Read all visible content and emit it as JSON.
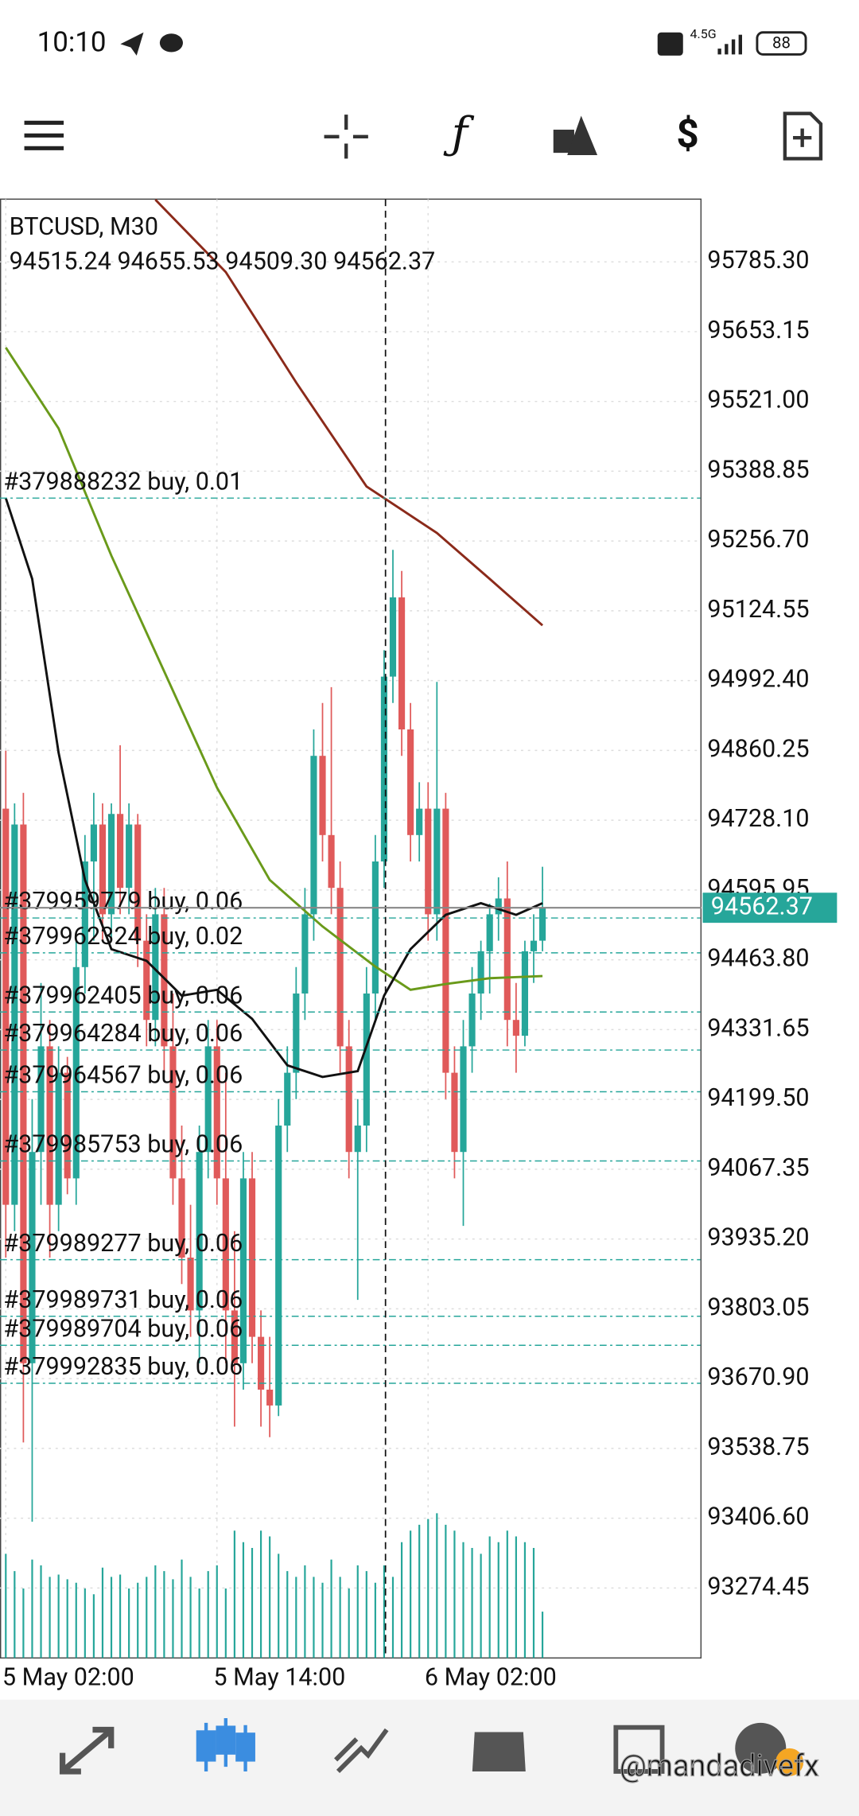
{
  "status_bar": {
    "time": "10:10",
    "network": "4.5G",
    "battery": "88"
  },
  "chart_data": {
    "type": "candlestick",
    "title": "BTCUSD, M30",
    "ohlc_labels": [
      "94515.24",
      "94655.53",
      "94509.30",
      "94562.37"
    ],
    "categories": [
      "5 May 02:00",
      null,
      null,
      null,
      null,
      null,
      null,
      null,
      null,
      null,
      null,
      null,
      null,
      null,
      null,
      null,
      null,
      null,
      null,
      null,
      null,
      null,
      null,
      null,
      "5 May 14:00",
      null,
      null,
      null,
      null,
      null,
      null,
      null,
      null,
      null,
      null,
      null,
      null,
      null,
      null,
      null,
      null,
      null,
      null,
      null,
      null,
      null,
      null,
      null,
      "6 May 02:00",
      null,
      null,
      null,
      null,
      null,
      null,
      null,
      null,
      null,
      null,
      null,
      null,
      null
    ],
    "open": [
      94750,
      94000,
      94720,
      93700,
      94100,
      94300,
      94000,
      94250,
      94050,
      94450,
      94650,
      94720,
      94550,
      94740,
      94600,
      94720,
      94500,
      94350,
      94550,
      94300,
      94050,
      93900,
      93800,
      94100,
      94300,
      94050,
      93800,
      93700,
      94050,
      93750,
      93650,
      93620,
      94150,
      94250,
      94400,
      94550,
      94850,
      94700,
      94600,
      94300,
      94100,
      94150,
      94400,
      94650,
      95000,
      95150,
      94900,
      94700,
      94750,
      94550,
      94750,
      94250,
      94100,
      94300,
      94400,
      94480,
      94550,
      94580,
      94350,
      94320,
      94480,
      94500
    ],
    "high": [
      94860,
      94760,
      94780,
      94200,
      94420,
      94350,
      94300,
      94280,
      94500,
      94700,
      94780,
      94760,
      94760,
      94870,
      94760,
      94740,
      94550,
      94600,
      94600,
      94400,
      94150,
      94000,
      94150,
      94350,
      94350,
      94250,
      93950,
      94100,
      94100,
      93800,
      93750,
      94200,
      94300,
      94450,
      94600,
      94900,
      94950,
      94980,
      94650,
      94350,
      94200,
      94450,
      94700,
      95050,
      95240,
      95200,
      94950,
      94800,
      94800,
      94990,
      94780,
      94300,
      94350,
      94450,
      94500,
      94570,
      94620,
      94650,
      94420,
      94500,
      94550,
      94640
    ],
    "low": [
      93900,
      93950,
      93550,
      93400,
      94000,
      93900,
      93950,
      94020,
      94000,
      94400,
      94500,
      94500,
      94500,
      94550,
      94550,
      94450,
      94300,
      94300,
      94250,
      94000,
      93850,
      93750,
      93700,
      94050,
      94000,
      93700,
      93580,
      93650,
      93700,
      93580,
      93560,
      93600,
      94100,
      94200,
      94350,
      94500,
      94650,
      94550,
      94250,
      94050,
      93820,
      94100,
      94350,
      94600,
      94950,
      94850,
      94650,
      94650,
      94500,
      94500,
      94200,
      94050,
      93960,
      94250,
      94350,
      94400,
      94500,
      94300,
      94250,
      94300,
      94420,
      94480
    ],
    "close": [
      94000,
      94720,
      93700,
      94100,
      94300,
      94000,
      94250,
      94050,
      94450,
      94650,
      94720,
      94550,
      94740,
      94600,
      94720,
      94500,
      94350,
      94550,
      94300,
      94050,
      93900,
      93800,
      94100,
      94300,
      94050,
      93800,
      93700,
      94050,
      93750,
      93650,
      93620,
      94150,
      94250,
      94400,
      94550,
      94850,
      94700,
      94600,
      94300,
      94100,
      94150,
      94400,
      94650,
      95000,
      95150,
      94900,
      94700,
      94750,
      94550,
      94750,
      94250,
      94100,
      94300,
      94400,
      94480,
      94550,
      94580,
      94350,
      94320,
      94480,
      94500,
      94562.37
    ],
    "volume": [
      90,
      75,
      60,
      85,
      80,
      70,
      72,
      68,
      65,
      60,
      55,
      78,
      70,
      72,
      60,
      65,
      70,
      80,
      75,
      68,
      85,
      70,
      60,
      75,
      80,
      60,
      110,
      100,
      95,
      110,
      105,
      90,
      75,
      70,
      80,
      70,
      65,
      85,
      70,
      60,
      80,
      75,
      65,
      80,
      70,
      100,
      110,
      115,
      120,
      125,
      115,
      110,
      100,
      95,
      90,
      105,
      100,
      110,
      105,
      100,
      95,
      40
    ],
    "up_color": "#26a69a",
    "down_color": "#e05a5a",
    "moving_averages": [
      {
        "color": "#8b2a1a",
        "x": [
          17,
          25,
          33,
          41,
          49,
          55,
          61
        ],
        "values": [
          95903,
          95766,
          95557,
          95360,
          95272,
          95185,
          95097
        ]
      },
      {
        "color": "#6a9a1a",
        "x": [
          0,
          6,
          12,
          18,
          24,
          30,
          36,
          42,
          46,
          50,
          55,
          61
        ],
        "values": [
          95623,
          95470,
          95229,
          95010,
          94790,
          94615,
          94527,
          94451,
          94407,
          94418,
          94429,
          94433
        ]
      },
      {
        "color": "#111111",
        "x": [
          0,
          3,
          6,
          9,
          12,
          16,
          20,
          24,
          28,
          32,
          36,
          40,
          43,
          46,
          50,
          54,
          58,
          61
        ],
        "values": [
          95338,
          95185,
          94856,
          94615,
          94484,
          94462,
          94396,
          94407,
          94352,
          94264,
          94242,
          94253,
          94396,
          94484,
          94549,
          94571,
          94549,
          94571
        ]
      }
    ],
    "orders": [
      {
        "label": "#379888232 buy, 0.01",
        "price": 95338
      },
      {
        "label": "#379959779 buy, 0.06",
        "price": 94543
      },
      {
        "label": "#379962324 buy, 0.02",
        "price": 94477
      },
      {
        "label": "#379962405 buy, 0.06",
        "price": 94365
      },
      {
        "label": "#379964284 buy, 0.06",
        "price": 94293
      },
      {
        "label": "#379964567 buy, 0.06",
        "price": 94214
      },
      {
        "label": "#379985753 buy, 0.06",
        "price": 94083
      },
      {
        "label": "#379989277 buy, 0.06",
        "price": 93896
      },
      {
        "label": "#379989731 buy, 0.06",
        "price": 93789
      },
      {
        "label": "#379989704 buy, 0.06",
        "price": 93734
      },
      {
        "label": "#379992835 buy, 0.06",
        "price": 93662
      }
    ],
    "last_price": 94562.37,
    "ylim": [
      93142,
      95904
    ],
    "yticks": [
      {
        "value": 95785.3,
        "label": "95785.30"
      },
      95653.15,
      {
        "value": 95521,
        "label": "95521.00"
      },
      95388.85,
      {
        "value": 95256.7,
        "label": "95256.70"
      },
      95124.55,
      {
        "value": 94992.4,
        "label": "94992.40"
      },
      94860.25,
      {
        "value": 94728.1,
        "label": "94728.10"
      },
      94595.95,
      {
        "value": 94463.8,
        "label": "94463.80"
      },
      94331.65,
      {
        "value": 94199.5,
        "label": "94199.50"
      },
      94067.35,
      {
        "value": 93935.2,
        "label": "93935.20"
      },
      93803.05,
      {
        "value": 93670.9,
        "label": "93670.90"
      },
      93538.75,
      {
        "value": 93406.6,
        "label": "93406.60"
      },
      93274.45
    ]
  },
  "watermark": "@mandadivefx"
}
